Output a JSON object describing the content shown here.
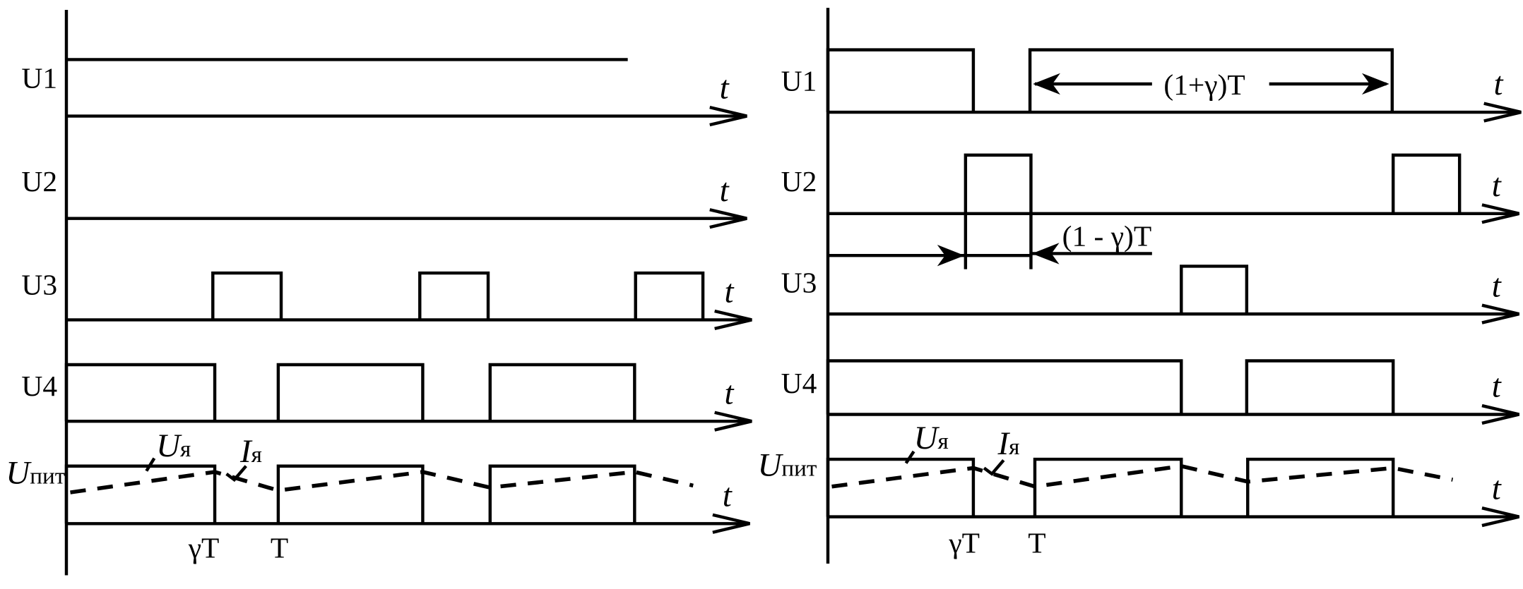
{
  "colors": {
    "ink": "#000000",
    "background": "#ffffff"
  },
  "axis_label": "t",
  "left": {
    "signals": [
      "U1",
      "U2",
      "U3",
      "U4"
    ],
    "supply_label_main": "U",
    "supply_label_sub": "пит",
    "armature_voltage_main": "U",
    "armature_voltage_sub": "я",
    "armature_current_main": "I",
    "armature_current_sub": "я",
    "tick_gamma_t": "γT",
    "tick_t": "T"
  },
  "right": {
    "signals": [
      "U1",
      "U2",
      "U3",
      "U4"
    ],
    "supply_label_main": "U",
    "supply_label_sub": "пит",
    "armature_voltage_main": "U",
    "armature_voltage_sub": "я",
    "armature_current_main": "I",
    "armature_current_sub": "я",
    "tick_gamma_t": "γT",
    "tick_t": "T",
    "dimension_long": "(1+γ)T",
    "dimension_short": "(1 - γ)T"
  }
}
